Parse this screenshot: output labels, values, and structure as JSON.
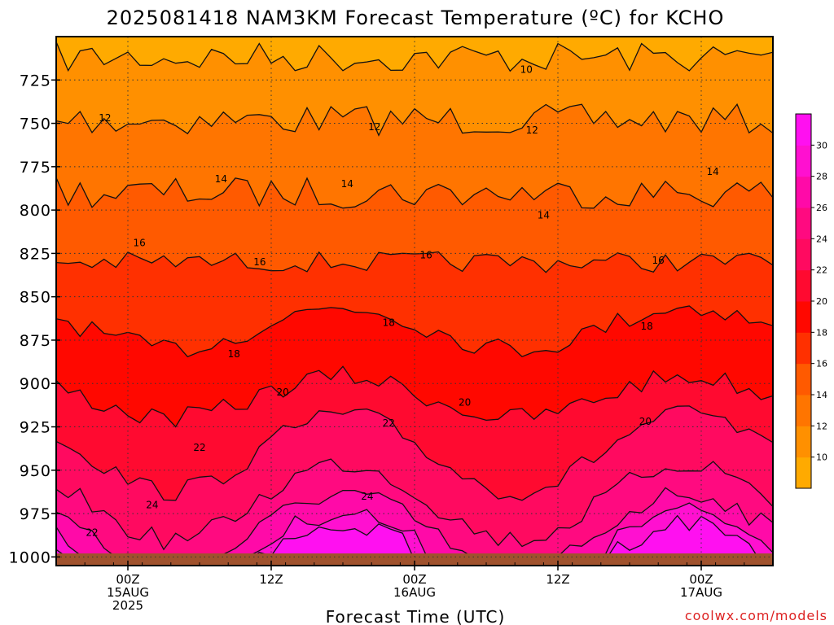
{
  "chart_data": {
    "type": "contour",
    "title": "2025081418 NAM3KM Forecast Temperature (ºC) for KCHO",
    "xlabel": "Forecast Time (UTC)",
    "ylabel": "",
    "credit": "coolwx.com/models",
    "y_axis": {
      "reversed": true,
      "range": [
        700,
        1005
      ],
      "ticks": [
        725,
        750,
        775,
        800,
        825,
        850,
        875,
        900,
        925,
        950,
        975,
        1000
      ]
    },
    "x_axis": {
      "range_hours": [
        -5,
        45
      ],
      "ticks": [
        {
          "hour": 0,
          "lines": [
            "00Z",
            "15AUG",
            "2025"
          ]
        },
        {
          "hour": 10,
          "lines": [
            "12Z"
          ]
        },
        {
          "hour": 20,
          "lines": [
            "00Z",
            "16AUG"
          ]
        },
        {
          "hour": 30,
          "lines": [
            "12Z"
          ]
        },
        {
          "hour": 40,
          "lines": [
            "00Z",
            "17AUG"
          ]
        }
      ]
    },
    "grid": true,
    "colorbar": {
      "levels": [
        10,
        12,
        14,
        16,
        18,
        20,
        22,
        24,
        26,
        28,
        30
      ],
      "colors": [
        "#ffaa00",
        "#ff9000",
        "#ff7500",
        "#ff5a00",
        "#ff3000",
        "#ff0800",
        "#ff0a30",
        "#ff0a60",
        "#ff0a80",
        "#ff0aa8",
        "#ff10d0",
        "#ff10f0"
      ]
    },
    "contour_labels": [
      {
        "text": "10",
        "hour": 27.8,
        "p": 719
      },
      {
        "text": "12",
        "hour": -1.6,
        "p": 747
      },
      {
        "text": "12",
        "hour": 17.2,
        "p": 752
      },
      {
        "text": "12",
        "hour": 28.2,
        "p": 754
      },
      {
        "text": "14",
        "hour": 6.5,
        "p": 782
      },
      {
        "text": "14",
        "hour": 15.3,
        "p": 785
      },
      {
        "text": "14",
        "hour": 29.0,
        "p": 803
      },
      {
        "text": "14",
        "hour": 40.8,
        "p": 778
      },
      {
        "text": "16",
        "hour": 0.8,
        "p": 819
      },
      {
        "text": "16",
        "hour": 9.2,
        "p": 830
      },
      {
        "text": "16",
        "hour": 20.8,
        "p": 826
      },
      {
        "text": "16",
        "hour": 37.0,
        "p": 829
      },
      {
        "text": "18",
        "hour": 7.4,
        "p": 883
      },
      {
        "text": "18",
        "hour": 18.2,
        "p": 865
      },
      {
        "text": "18",
        "hour": 36.2,
        "p": 867
      },
      {
        "text": "20",
        "hour": 10.8,
        "p": 905
      },
      {
        "text": "20",
        "hour": 23.5,
        "p": 911
      },
      {
        "text": "20",
        "hour": 36.1,
        "p": 922
      },
      {
        "text": "22",
        "hour": 5.0,
        "p": 937
      },
      {
        "text": "22",
        "hour": 18.2,
        "p": 923
      },
      {
        "text": "22",
        "hour": -2.5,
        "p": 986
      },
      {
        "text": "24",
        "hour": 1.7,
        "p": 970
      },
      {
        "text": "24",
        "hour": 16.7,
        "p": 965
      }
    ]
  }
}
